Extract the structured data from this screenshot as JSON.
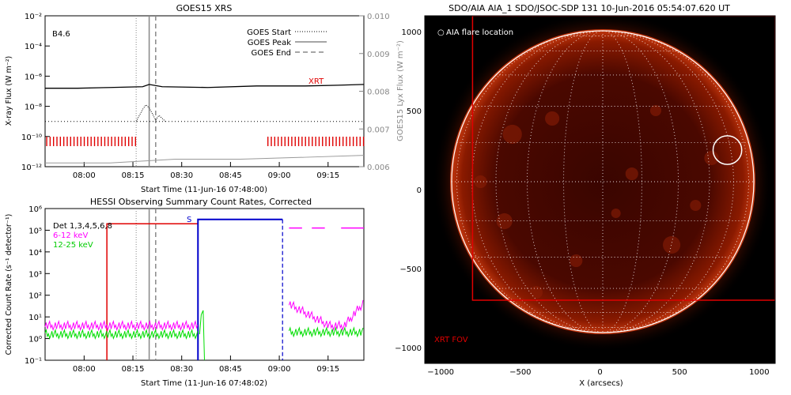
{
  "colors": {
    "xrt": "#e00000",
    "rhessi_bar": "#e00000",
    "blue": "#0000cc",
    "det": "#000000",
    "low": "#ff00ff",
    "mid": "#00dd00",
    "grey": "#888888",
    "sun_bg": "#000000"
  },
  "chart_data": [
    {
      "type": "line",
      "title": "GOES15 XRS",
      "ylabel": "X-ray Flux (W m⁻²)",
      "y2label": "GOES15 Lyx Flux (W m⁻²)",
      "xlabel": "Start Time (11-Jun-16 07:48:00)",
      "x_ticks": [
        "08:00",
        "08:15",
        "08:30",
        "08:45",
        "09:00",
        "09:15"
      ],
      "y_ticks": [
        "10⁻²",
        "10⁻⁴",
        "10⁻⁶",
        "10⁻⁸",
        "10⁻¹⁰",
        "10⁻¹²"
      ],
      "y2_ticks": [
        "0.010",
        "0.009",
        "0.008",
        "0.007",
        "0.006"
      ],
      "ylim_log10": [
        -12,
        -2
      ],
      "y2lim": [
        0.006,
        0.01
      ],
      "xlim_minutes": [
        0,
        98
      ],
      "class_label": "B4.6",
      "legend": [
        "GOES Start",
        "GOES Peak",
        "GOES End"
      ],
      "xrt_label": "XRT",
      "events_minutes": {
        "start": 28,
        "peak": 32,
        "end": 34
      },
      "series": [
        {
          "name": "long",
          "points": [
            [
              0,
              -6.8
            ],
            [
              10,
              -6.8
            ],
            [
              20,
              -6.75
            ],
            [
              30,
              -6.7
            ],
            [
              32,
              -6.55
            ],
            [
              36,
              -6.7
            ],
            [
              50,
              -6.75
            ],
            [
              65,
              -6.65
            ],
            [
              70,
              -6.65
            ],
            [
              80,
              -6.65
            ],
            [
              90,
              -6.6
            ],
            [
              98,
              -6.55
            ]
          ]
        },
        {
          "name": "short",
          "points": [
            [
              28,
              -9.0
            ],
            [
              30,
              -8.2
            ],
            [
              31,
              -7.9
            ],
            [
              32,
              -8.1
            ],
            [
              33,
              -8.5
            ],
            [
              34,
              -8.9
            ],
            [
              35,
              -8.6
            ],
            [
              36,
              -8.8
            ],
            [
              37,
              -9.0
            ]
          ]
        },
        {
          "name": "background",
          "points": [
            [
              0,
              -9.0
            ],
            [
              98,
              -9.0
            ]
          ]
        },
        {
          "name": "lyman",
          "points": [
            [
              0,
              0.0061
            ],
            [
              20,
              0.0061
            ],
            [
              40,
              0.0062
            ],
            [
              60,
              0.0062
            ],
            [
              80,
              0.00625
            ],
            [
              98,
              0.0063
            ]
          ]
        }
      ],
      "xrt_segments_minutes": [
        [
          0,
          28
        ],
        [
          68,
          98
        ]
      ]
    },
    {
      "type": "line",
      "title": "HESSI Observing Summary Count Rates, Corrected",
      "ylabel": "Corrected Count Rate (s⁻¹ detector⁻¹)",
      "xlabel": "Start Time (11-Jun-16 07:48:02)",
      "x_ticks": [
        "08:00",
        "08:15",
        "08:30",
        "08:45",
        "09:00",
        "09:15"
      ],
      "y_ticks": [
        "10⁶",
        "10⁵",
        "10⁴",
        "10³",
        "10²",
        "10¹",
        "10⁰",
        "10⁻¹"
      ],
      "ylim_log10": [
        -1,
        6
      ],
      "xlim_minutes": [
        0,
        98
      ],
      "legend": [
        "Det 1,3,4,5,6,8",
        "6-12 keV",
        "12-25 keV"
      ],
      "saa_label": "S",
      "events_minutes": {
        "start": 28,
        "peak": 32,
        "end": 34
      },
      "red_window_minutes": [
        19,
        47
      ],
      "blue_window_minutes": [
        47,
        73
      ],
      "red_level_log10": 5.3,
      "blue_level_log10": 5.5,
      "series": [
        {
          "name": "6-12 keV",
          "level_log10": 0.6,
          "segments": [
            [
              0,
              47
            ],
            [
              75,
              98
            ]
          ]
        },
        {
          "name": "12-25 keV",
          "level_log10": 0.2,
          "segments": [
            [
              0,
              47
            ],
            [
              75,
              98
            ]
          ]
        }
      ]
    }
  ],
  "image_panel": {
    "title": "SDO/AIA AIA_1 SDO/JSOC-SDP 131 10-Jun-2016 05:54:07.620 UT",
    "legend_marker": "○",
    "legend_text": "AIA flare location",
    "xrt_fov_label": "XRT FOV",
    "xlabel": "X (arcsecs)",
    "x_ticks": [
      "−1000",
      "−500",
      "0",
      "500",
      "1000"
    ],
    "y_ticks": [
      "1000",
      "500",
      "0",
      "−500",
      "−1000"
    ],
    "xlim_arcsec": [
      -1100,
      1100
    ],
    "ylim_arcsec": [
      -1100,
      1100
    ],
    "sun_radius_arcsec": 950,
    "flare_location_arcsec": [
      800,
      250
    ],
    "flare_radius_arcsec": 90,
    "xrt_fov_arcsec": {
      "x0": -800,
      "x1": 1100,
      "y0": -700,
      "y1": 1100
    }
  }
}
